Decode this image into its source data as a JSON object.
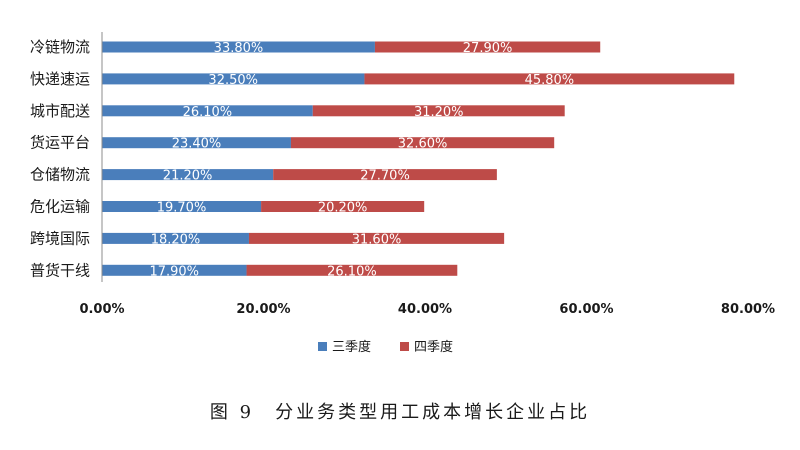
{
  "chart_data": {
    "type": "bar",
    "orientation": "horizontal",
    "stacked": true,
    "categories": [
      "冷链物流",
      "快递速运",
      "城市配送",
      "货运平台",
      "仓储物流",
      "危化运输",
      "跨境国际",
      "普货干线"
    ],
    "series": [
      {
        "name": "三季度",
        "color": "#4a7ebb",
        "values": [
          33.8,
          32.5,
          26.1,
          23.4,
          21.2,
          19.7,
          18.2,
          17.9
        ],
        "labels": [
          "33.80%",
          "32.50%",
          "26.10%",
          "23.40%",
          "21.20%",
          "19.70%",
          "18.20%",
          "17.90%"
        ]
      },
      {
        "name": "四季度",
        "color": "#be4b48",
        "values": [
          27.9,
          45.8,
          31.2,
          32.6,
          27.7,
          20.2,
          31.6,
          26.1
        ],
        "labels": [
          "27.90%",
          "45.80%",
          "31.20%",
          "32.60%",
          "27.70%",
          "20.20%",
          "31.60%",
          "26.10%"
        ]
      }
    ],
    "xlim": [
      0,
      80
    ],
    "xticks": [
      0,
      20,
      40,
      60,
      80
    ],
    "xtick_labels": [
      "0.00%",
      "20.00%",
      "40.00%",
      "60.00%",
      "80.00%"
    ],
    "grid": false,
    "legend_position": "bottom"
  },
  "caption": "图 9　分业务类型用工成本增长企业占比"
}
